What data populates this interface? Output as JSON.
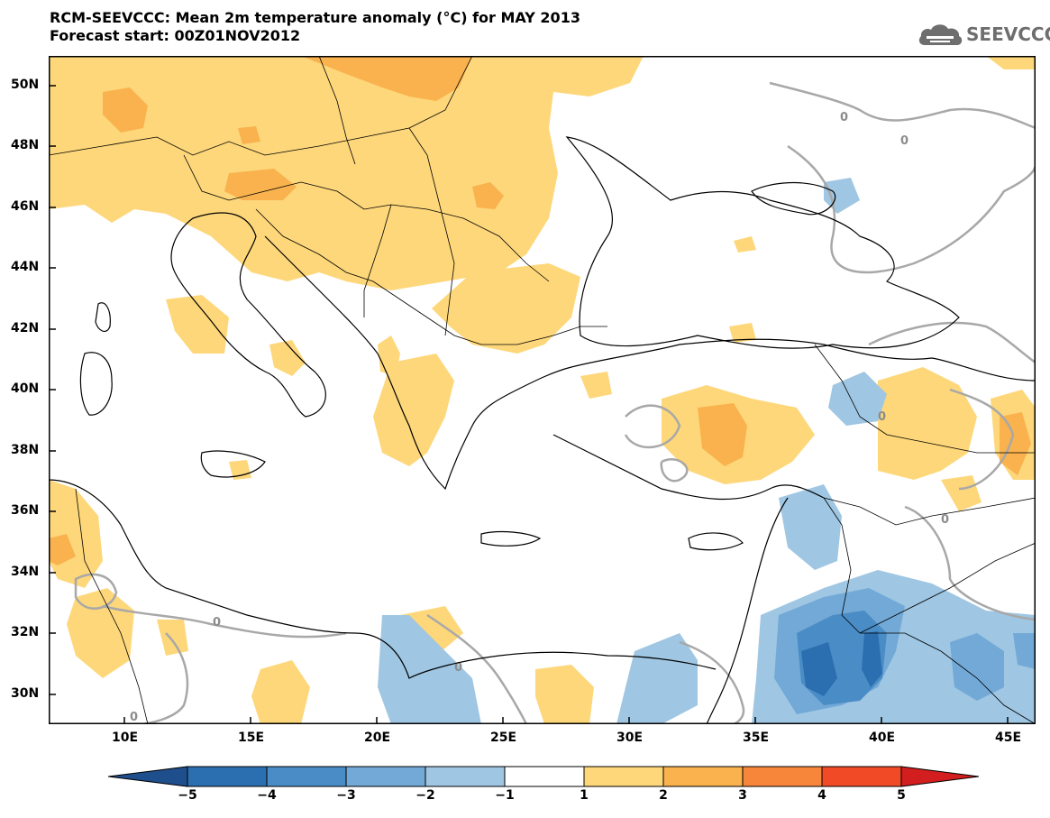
{
  "header": {
    "title_line1": "RCM-SEEVCCC: Mean 2m temperature anomaly (°C) for MAY 2013",
    "title_line2": "Forecast start: 00Z01NOV2012"
  },
  "logo": {
    "text": "SEEVCCC",
    "icon": "cloud-logo-icon"
  },
  "map": {
    "lon_range": [
      7,
      46
    ],
    "lat_range": [
      29,
      51
    ],
    "lat_ticks": [
      "50N",
      "48N",
      "46N",
      "44N",
      "42N",
      "40N",
      "38N",
      "36N",
      "34N",
      "32N",
      "30N"
    ],
    "lon_ticks": [
      "10E",
      "15E",
      "20E",
      "25E",
      "30E",
      "35E",
      "40E",
      "45E"
    ],
    "contour_label": "0"
  },
  "colorbar": {
    "ticks": [
      "−5",
      "−4",
      "−3",
      "−2",
      "−1",
      "1",
      "2",
      "3",
      "4",
      "5"
    ],
    "colors": [
      "#1f4e8c",
      "#2c6fb0",
      "#4a8cc6",
      "#72a9d6",
      "#9fc6e2",
      "#ffffff",
      "#fdd77a",
      "#f9b24e",
      "#f7863a",
      "#f04a26",
      "#d21e1e"
    ]
  }
}
